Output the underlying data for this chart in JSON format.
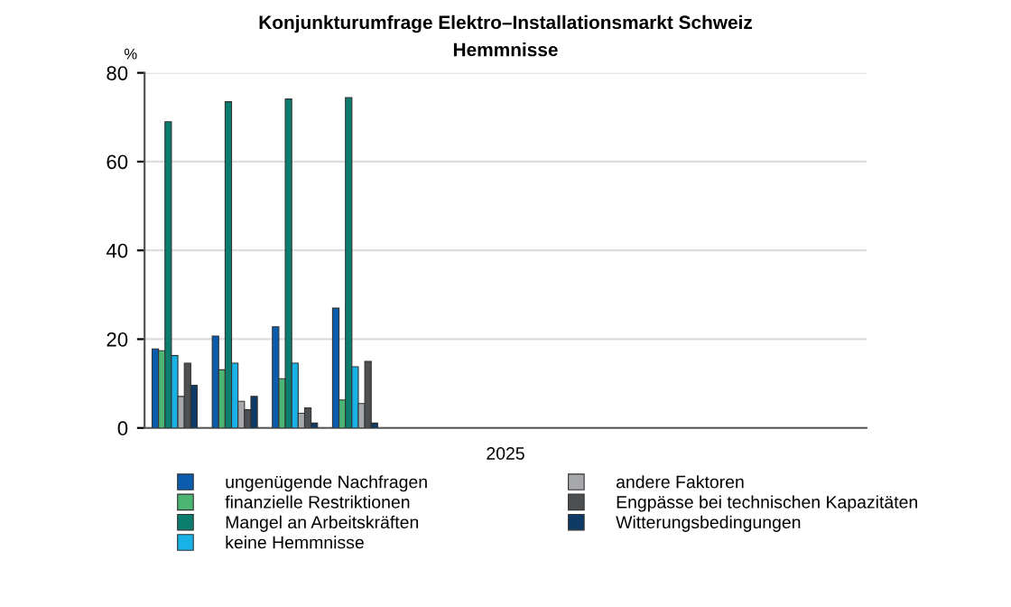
{
  "chart_data": {
    "type": "bar",
    "title": "Konjunkturumfrage Elektro–Installationsmarkt Schweiz",
    "subtitle": "Hemmnisse",
    "ylabel": "%",
    "xlabel": "2025",
    "categories": [
      null,
      null,
      null,
      null,
      null,
      null,
      null,
      null,
      null,
      null,
      null,
      null
    ],
    "series": [
      {
        "name": "ungenügende Nachfragen",
        "color": "#0b5cad",
        "values": [
          17.8,
          20.7,
          22.8,
          27,
          null,
          null,
          null,
          null,
          null,
          null,
          null,
          null
        ]
      },
      {
        "name": "finanzielle Restriktionen",
        "color": "#4cb574",
        "values": [
          17.4,
          13.1,
          11.1,
          6.3,
          null,
          null,
          null,
          null,
          null,
          null,
          null,
          null
        ]
      },
      {
        "name": "Mangel an Arbeitskräften",
        "color": "#0b7d6e",
        "values": [
          69,
          73.5,
          74.1,
          74.4,
          null,
          null,
          null,
          null,
          null,
          null,
          null,
          null
        ]
      },
      {
        "name": "keine Hemmnisse",
        "color": "#19b2e6",
        "values": [
          16.3,
          14.6,
          14.6,
          13.8,
          null,
          null,
          null,
          null,
          null,
          null,
          null,
          null
        ]
      },
      {
        "name": "andere Faktoren",
        "color": "#a6a8ab",
        "values": [
          7.1,
          6.0,
          3.3,
          5.5,
          null,
          null,
          null,
          null,
          null,
          null,
          null,
          null
        ]
      },
      {
        "name": "Engpässe bei technischen Kapazitäten",
        "color": "#4d5052",
        "values": [
          14.6,
          4.1,
          4.5,
          15,
          null,
          null,
          null,
          null,
          null,
          null,
          null,
          null
        ]
      },
      {
        "name": "Witterungsbedingungen",
        "color": "#0d3b66",
        "values": [
          9.6,
          7.1,
          1.1,
          1.1,
          null,
          null,
          null,
          null,
          null,
          null,
          null,
          null
        ]
      }
    ],
    "ylim": [
      0,
      80
    ],
    "yticks": [
      0,
      20,
      40,
      60,
      80
    ],
    "grid": "y",
    "legend": "bottom"
  }
}
